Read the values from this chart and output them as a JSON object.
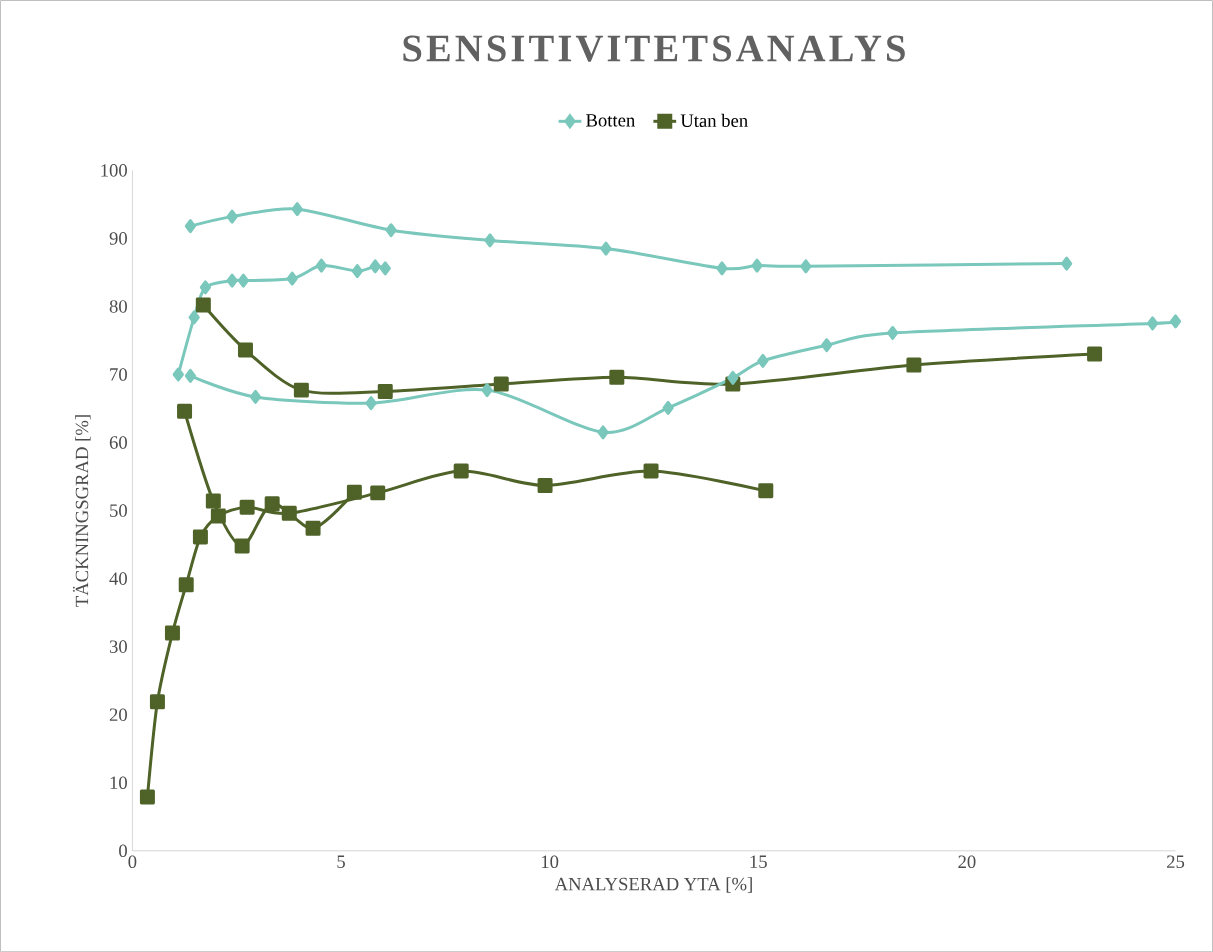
{
  "chart_data": {
    "type": "line",
    "title": "SENSITIVITETSANALYS",
    "xlabel": "ANALYSERAD YTA [%]",
    "ylabel": "TÄCKNINGSGRAD [%]",
    "xlim": [
      0,
      25
    ],
    "xticks": [
      0,
      5,
      10,
      15,
      20,
      25
    ],
    "ylim": [
      0,
      100
    ],
    "yticks": [
      0,
      10,
      20,
      30,
      40,
      50,
      60,
      70,
      80,
      90,
      100
    ],
    "grid": false,
    "legend": "top",
    "line_style": "solid",
    "series": [
      {
        "name": "Botten",
        "color": "#7ac7bc",
        "marker": "diamond",
        "x": [
          1.39,
          2.39,
          3.95,
          6.2,
          8.57,
          11.35,
          14.13,
          14.97,
          16.14,
          22.39
        ],
        "values": [
          91.8,
          93.2,
          94.3,
          91.2,
          89.7,
          88.5,
          85.6,
          86.0,
          85.9,
          86.3
        ]
      },
      {
        "color": "#7ac7bc",
        "marker": "diamond",
        "x": [
          1.1,
          1.48,
          1.75,
          2.39,
          2.66,
          3.83,
          4.53,
          5.39,
          5.82,
          6.06
        ],
        "values": [
          70.0,
          78.4,
          82.8,
          83.8,
          83.8,
          84.1,
          86.0,
          85.2,
          85.9,
          85.6
        ]
      },
      {
        "color": "#7ac7bc",
        "marker": "diamond",
        "x": [
          1.39,
          2.95,
          5.72,
          8.5,
          11.28,
          12.84,
          14.39,
          15.11,
          16.64,
          18.22,
          24.45,
          25.0
        ],
        "values": [
          69.8,
          66.7,
          65.8,
          67.7,
          61.5,
          65.1,
          69.5,
          72.0,
          74.3,
          76.1,
          77.5,
          77.8
        ]
      },
      {
        "name": "Utan ben",
        "color": "#4f6228",
        "marker": "square",
        "x": [
          1.7,
          2.71,
          4.05,
          6.06,
          8.84,
          11.61,
          14.39,
          18.73,
          23.06
        ],
        "values": [
          80.2,
          73.6,
          67.7,
          67.5,
          68.6,
          69.6,
          68.6,
          71.4,
          73.0
        ]
      },
      {
        "color": "#4f6228",
        "marker": "square",
        "x": [
          0.36,
          0.6,
          0.96,
          1.29,
          1.63,
          2.06,
          2.75,
          3.76,
          5.88,
          7.88,
          9.89,
          12.43,
          15.18
        ],
        "values": [
          7.9,
          21.9,
          32.0,
          39.1,
          46.1,
          49.2,
          50.5,
          49.6,
          52.6,
          55.8,
          53.7,
          55.8,
          52.9
        ]
      },
      {
        "color": "#4f6228",
        "marker": "square",
        "x": [
          1.25,
          1.94,
          2.63,
          3.35,
          4.33,
          5.32
        ],
        "values": [
          64.6,
          51.4,
          44.8,
          51.0,
          47.4,
          52.7
        ]
      }
    ]
  }
}
